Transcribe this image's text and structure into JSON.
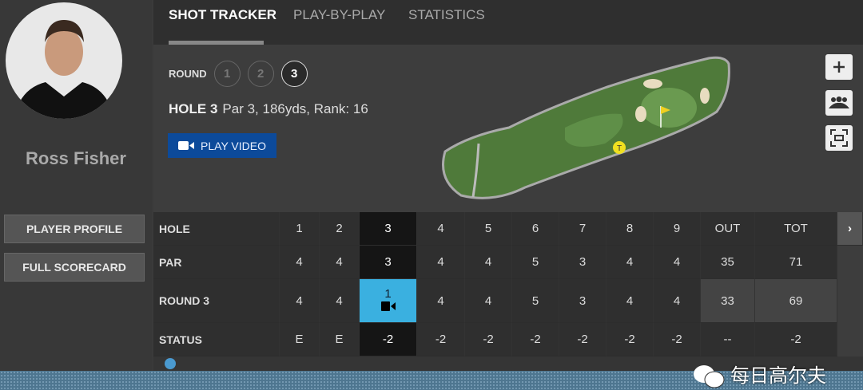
{
  "player": {
    "name": "Ross Fisher",
    "profile_label": "PLAYER PROFILE",
    "scorecard_label": "FULL SCORECARD"
  },
  "tabs": [
    {
      "label": "SHOT TRACKER",
      "active": true
    },
    {
      "label": "PLAY-BY-PLAY"
    },
    {
      "label": "STATISTICS"
    }
  ],
  "round": {
    "label": "ROUND",
    "options": [
      "1",
      "2",
      "3"
    ],
    "selected": "3"
  },
  "hole": {
    "title": "HOLE 3",
    "details": "Par 3, 186yds, Rank: 16",
    "tee_marker": "T"
  },
  "video_label": "PLAY VIDEO",
  "map_controls": [
    "plus-icon",
    "group-icon",
    "fullscreen-icon"
  ],
  "scorecard": {
    "headers": [
      "HOLE",
      "1",
      "2",
      "3",
      "4",
      "5",
      "6",
      "7",
      "8",
      "9",
      "OUT",
      "TOT"
    ],
    "rows": [
      {
        "label": "PAR",
        "values": [
          "4",
          "4",
          "3",
          "4",
          "4",
          "5",
          "3",
          "4",
          "4",
          "35",
          "71"
        ]
      },
      {
        "label": "ROUND 3",
        "values": [
          "4",
          "4",
          "1",
          "4",
          "4",
          "5",
          "3",
          "4",
          "4",
          "33",
          "69"
        ]
      },
      {
        "label": "STATUS",
        "values": [
          "E",
          "E",
          "-2",
          "-2",
          "-2",
          "-2",
          "-2",
          "-2",
          "-2",
          "--",
          "-2"
        ]
      }
    ],
    "selected_hole": "3",
    "highlight_color": "#3ab0e0"
  },
  "watermark": "每日高尔夫",
  "colors": {
    "video_button": "#0c4a9a",
    "fairway": "#4f7a3a"
  }
}
